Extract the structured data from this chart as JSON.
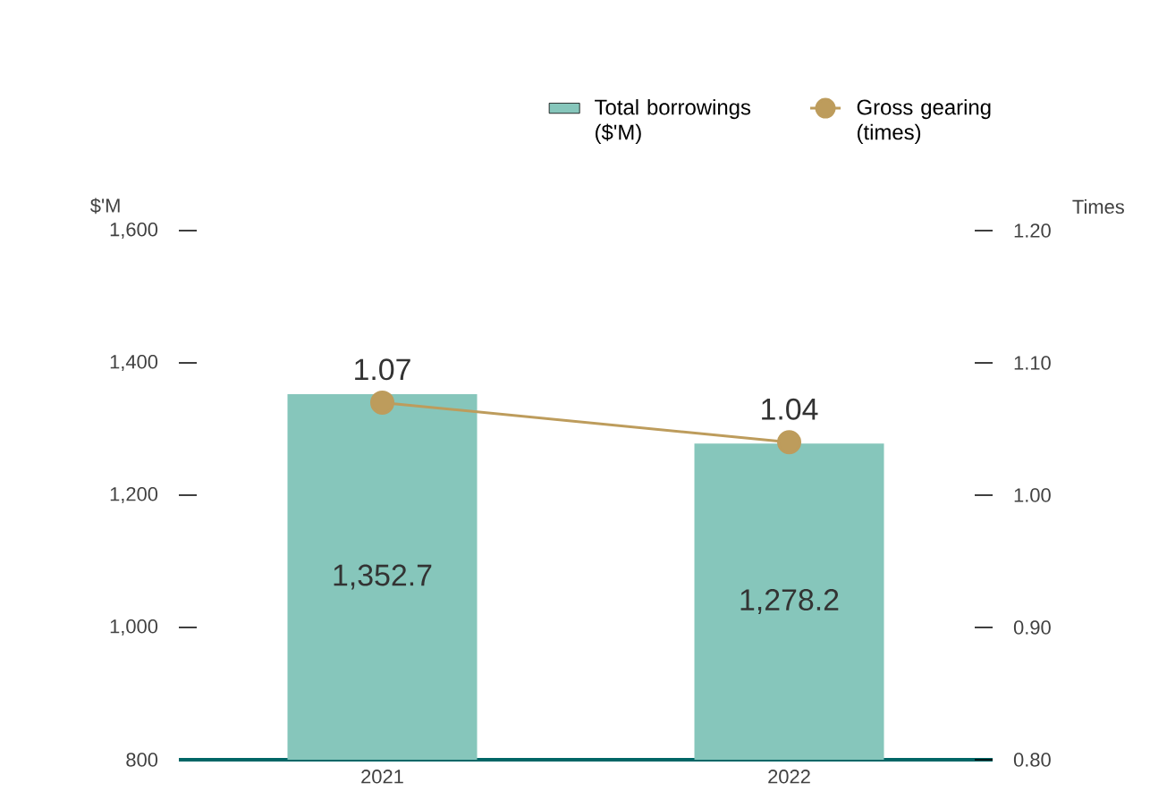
{
  "chart_data": {
    "type": "bar",
    "ylabel": "$'M",
    "y2label": "Times",
    "categories": [
      "2021",
      "2022"
    ],
    "series": [
      {
        "name": "Total borrowings ($'M)",
        "color": "#86c6bb",
        "values": [
          1352.7,
          1278.2
        ],
        "value_labels": [
          "1,352.7",
          "1,278.2"
        ]
      },
      {
        "name": "Gross gearing (times)",
        "type": "line",
        "axis": "y2",
        "color": "#bd9c5c",
        "values": [
          1.07,
          1.04
        ],
        "value_labels": [
          "1.07",
          "1.04"
        ],
        "marker": "circle"
      }
    ],
    "ylim": [
      800,
      1600
    ],
    "yticks": [
      {
        "value": 800,
        "label": "800"
      },
      {
        "value": 1000,
        "label": "1,000"
      },
      {
        "value": 1200,
        "label": "1,200"
      },
      {
        "value": 1400,
        "label": "1,400"
      },
      {
        "value": 1600,
        "label": "1,600"
      }
    ],
    "y2lim": [
      0.8,
      1.2
    ],
    "y2ticks": [
      {
        "value": 0.8,
        "label": "0.80"
      },
      {
        "value": 0.9,
        "label": "0.90"
      },
      {
        "value": 1.0,
        "label": "1.00"
      },
      {
        "value": 1.1,
        "label": "1.10"
      },
      {
        "value": 1.2,
        "label": "1.20"
      }
    ],
    "legend": "top right",
    "grid": false
  }
}
